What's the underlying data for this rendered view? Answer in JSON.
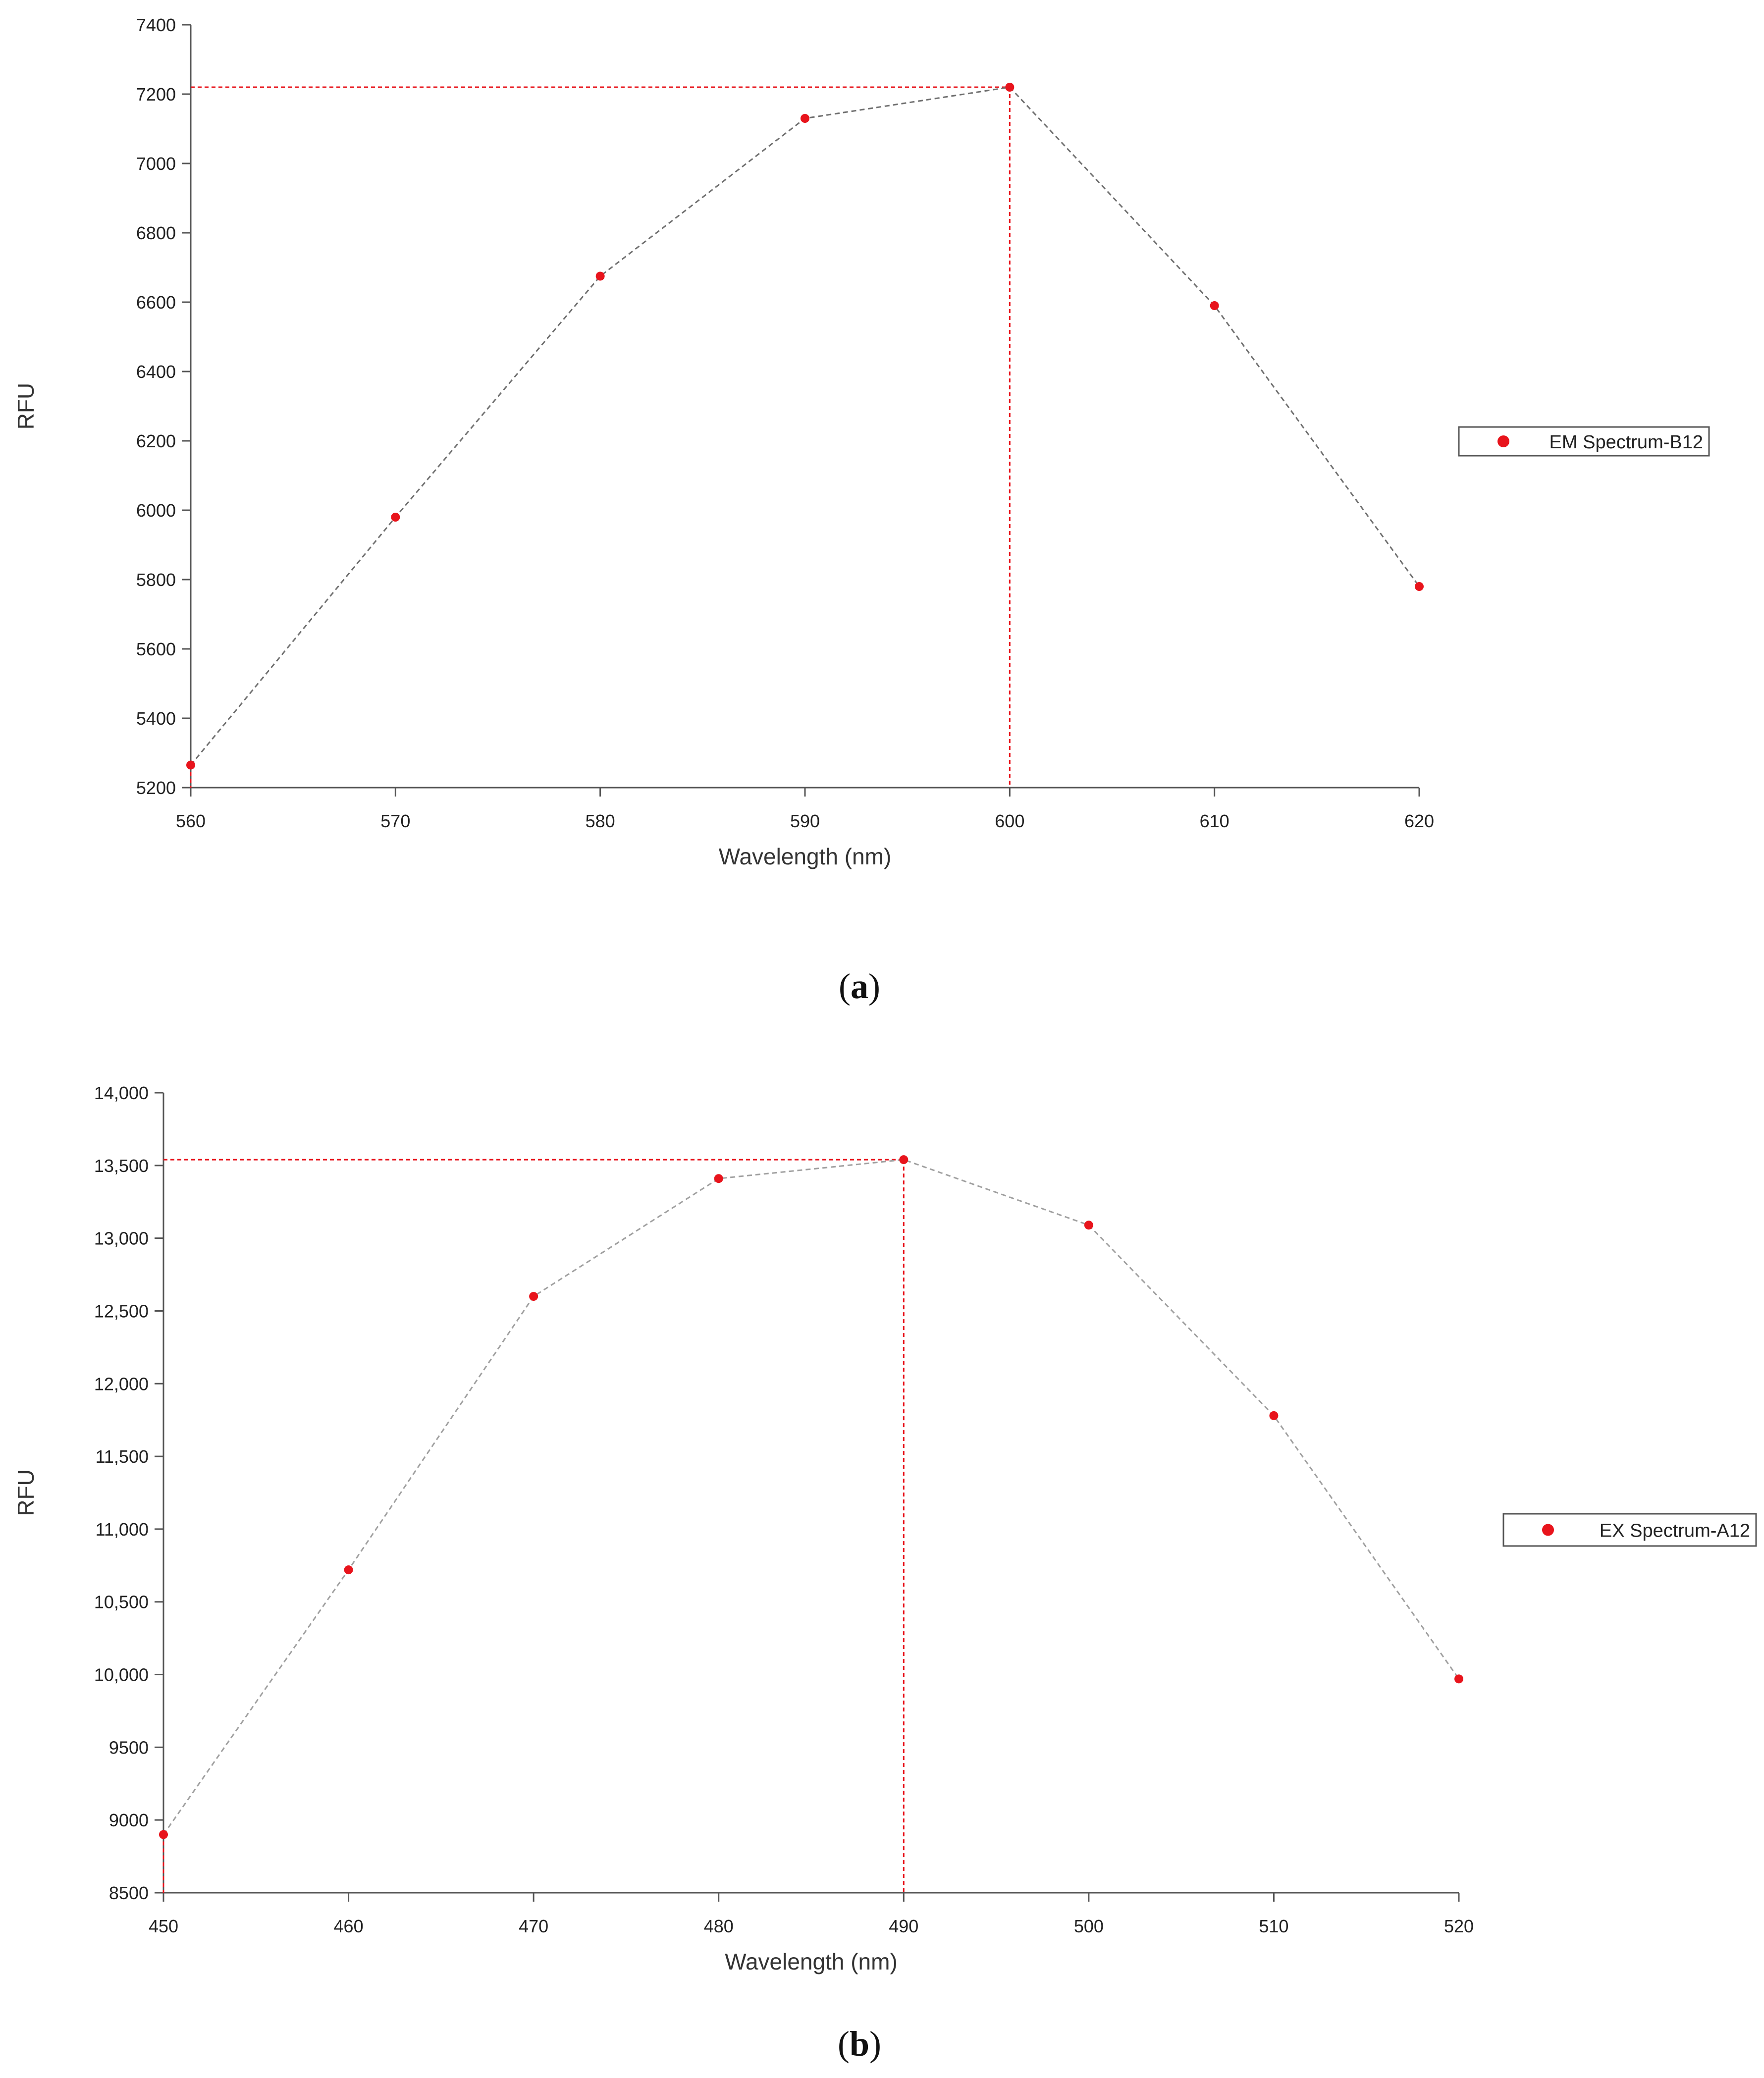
{
  "captions": {
    "a": "a",
    "b": "b"
  },
  "chart_data": [
    {
      "type": "line",
      "ylabel": "RFU",
      "xlabel": "Wavelength (nm)",
      "x": [
        560,
        570,
        580,
        590,
        600,
        610,
        620
      ],
      "series": [
        {
          "name": "EM Spectrum-B12",
          "values": [
            5265,
            5980,
            6675,
            7130,
            7220,
            6590,
            5780
          ]
        }
      ],
      "xlim": [
        560,
        620
      ],
      "ylim": [
        5200,
        7400
      ],
      "xticks": [
        "560",
        "570",
        "580",
        "590",
        "600",
        "610",
        "620"
      ],
      "yticks": [
        "5200",
        "5400",
        "5600",
        "5800",
        "6000",
        "6200",
        "6400",
        "6600",
        "6800",
        "7000",
        "7200",
        "7400"
      ],
      "peak": {
        "x": 600,
        "y": 7220
      },
      "marker_color": "#e8141c",
      "line_color": "#707070",
      "peak_line_color": "#e8141c",
      "grid": false,
      "legend_position": "right"
    },
    {
      "type": "line",
      "ylabel": "RFU",
      "xlabel": "Wavelength (nm)",
      "x": [
        450,
        460,
        470,
        480,
        490,
        500,
        510,
        520
      ],
      "series": [
        {
          "name": "EX Spectrum-A12",
          "values": [
            8900,
            10720,
            12600,
            13410,
            13540,
            13090,
            11780,
            9970
          ]
        }
      ],
      "xlim": [
        450,
        520
      ],
      "ylim": [
        8500,
        14000
      ],
      "xticks": [
        "450",
        "460",
        "470",
        "480",
        "490",
        "500",
        "510",
        "520"
      ],
      "yticks": [
        "8500",
        "9000",
        "9500",
        "10,000",
        "10,500",
        "11,000",
        "11,500",
        "12,000",
        "12,500",
        "13,000",
        "13,500",
        "14,000"
      ],
      "peak": {
        "x": 490,
        "y": 13540
      },
      "marker_color": "#e8141c",
      "line_color": "#a0a0a0",
      "peak_line_color": "#e8141c",
      "grid": false,
      "legend_position": "right"
    }
  ]
}
